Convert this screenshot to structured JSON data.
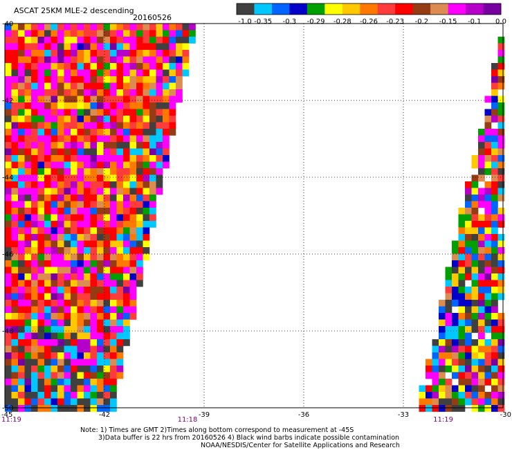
{
  "title": "ASCAT 25KM MLE-2 descending",
  "date": "20160526",
  "colorbar": {
    "colors": [
      "#404040",
      "#00c8ff",
      "#0064ff",
      "#0000c8",
      "#00a000",
      "#ffff00",
      "#ffc800",
      "#ff7800",
      "#ff3c3c",
      "#ff0000",
      "#963c14",
      "#dc8c50",
      "#ff00ff",
      "#b400c8",
      "#7800a0"
    ],
    "labels": [
      "-1.0",
      "-0.35",
      "-0.3",
      "-0.29",
      "-0.28",
      "-0.26",
      "-0.23",
      "-0.2",
      "-0.15",
      "-0.1",
      "0.0"
    ]
  },
  "map": {
    "lon_ticks": [
      "-45",
      "-42",
      "-39",
      "-36",
      "-33",
      "-30"
    ],
    "lat_ticks": [
      "-40",
      "-42",
      "-44",
      "-46",
      "-48",
      "-50"
    ],
    "lon_range": [
      -45,
      -30
    ],
    "lat_range": [
      -50,
      -40
    ],
    "swath_west": {
      "top_edge_lon": -39.3,
      "bottom_edge_lon": -41.8
    },
    "swath_east": {
      "top_edge_lon": -30.1,
      "bottom_edge_lon": -32.7
    }
  },
  "times": [
    {
      "label": "11:19",
      "lon": -45.0
    },
    {
      "label": "11:18",
      "lon": -39.5
    },
    {
      "label": "11:19",
      "lon": -31.8
    }
  ],
  "notes": {
    "line1": "Note: 1) Times are GMT 2)Times along bottom correspond to measurement at -45S",
    "line2": "3)Data buffer is 22 hrs from 20160526 4) Black wind barbs indicate possible contamination",
    "line3": "NOAA/NESDIS/Center for Satellite Applications and Research"
  }
}
